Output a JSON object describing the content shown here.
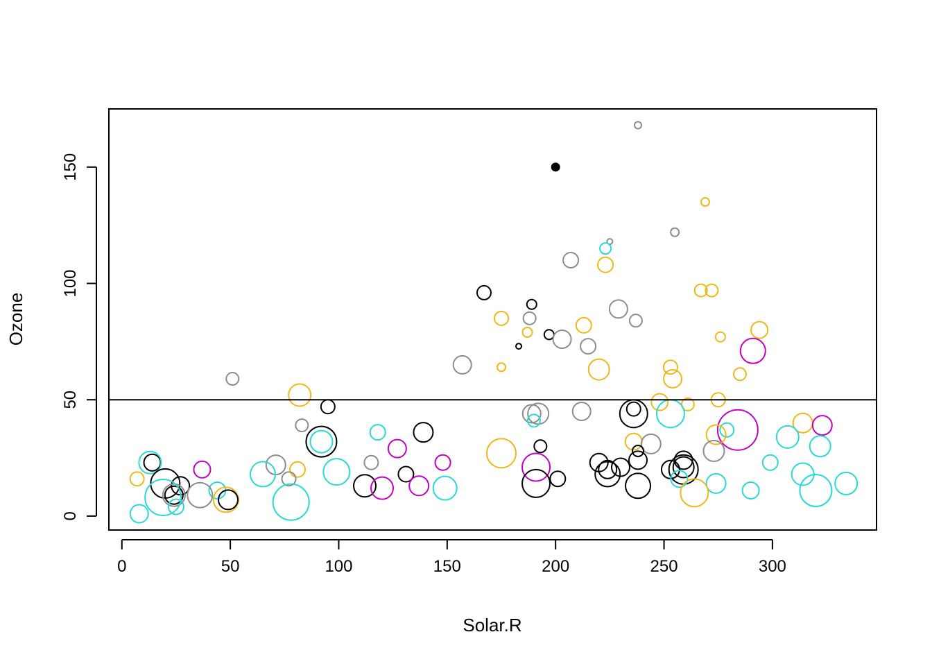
{
  "chart_data": {
    "type": "scatter",
    "title": "",
    "xlabel": "Solar.R",
    "ylabel": "Ozone",
    "xlim": [
      -6,
      348
    ],
    "ylim": [
      -6,
      175
    ],
    "xticks": [
      0,
      50,
      100,
      150,
      200,
      250,
      300
    ],
    "yticks": [
      0,
      50,
      100,
      150
    ],
    "xtick_labels": [
      "0",
      "50",
      "100",
      "150",
      "200",
      "250",
      "300"
    ],
    "ytick_labels": [
      "0",
      "50",
      "100",
      "150"
    ],
    "grid": false,
    "legend": "none",
    "hline": 50,
    "colors": {
      "black": "#000000",
      "gray": "#8c8c8c",
      "gold": "#efb819",
      "cyan": "#29d8d8",
      "magenta": "#c300c3"
    },
    "filled_points": [
      {
        "x": 200,
        "y": 150,
        "color": "black"
      }
    ],
    "points": [
      {
        "x": 238,
        "y": 168,
        "r": 5,
        "color": "gray"
      },
      {
        "x": 255,
        "y": 122,
        "r": 6,
        "color": "gray"
      },
      {
        "x": 269,
        "y": 135,
        "r": 6,
        "color": "gold"
      },
      {
        "x": 225,
        "y": 118,
        "r": 4,
        "color": "gray"
      },
      {
        "x": 223,
        "y": 115,
        "r": 8,
        "color": "cyan"
      },
      {
        "x": 207,
        "y": 110,
        "r": 11,
        "color": "gray"
      },
      {
        "x": 223,
        "y": 108,
        "r": 11,
        "color": "gold"
      },
      {
        "x": 167,
        "y": 96,
        "r": 10,
        "color": "black"
      },
      {
        "x": 267,
        "y": 97,
        "r": 9,
        "color": "gold"
      },
      {
        "x": 272,
        "y": 97,
        "r": 9,
        "color": "gold"
      },
      {
        "x": 189,
        "y": 91,
        "r": 7,
        "color": "black"
      },
      {
        "x": 229,
        "y": 89,
        "r": 13,
        "color": "gray"
      },
      {
        "x": 175,
        "y": 85,
        "r": 10,
        "color": "gold"
      },
      {
        "x": 188,
        "y": 85,
        "r": 9,
        "color": "gray"
      },
      {
        "x": 237,
        "y": 84,
        "r": 9,
        "color": "gray"
      },
      {
        "x": 213,
        "y": 82,
        "r": 11,
        "color": "gold"
      },
      {
        "x": 294,
        "y": 80,
        "r": 12,
        "color": "gold"
      },
      {
        "x": 187,
        "y": 79,
        "r": 7,
        "color": "gold"
      },
      {
        "x": 197,
        "y": 78,
        "r": 7,
        "color": "black"
      },
      {
        "x": 276,
        "y": 77,
        "r": 7,
        "color": "gold"
      },
      {
        "x": 203,
        "y": 76,
        "r": 13,
        "color": "gray"
      },
      {
        "x": 215,
        "y": 73,
        "r": 11,
        "color": "gray"
      },
      {
        "x": 183,
        "y": 73,
        "r": 4,
        "color": "black"
      },
      {
        "x": 291,
        "y": 71,
        "r": 18,
        "color": "magenta"
      },
      {
        "x": 157,
        "y": 65,
        "r": 13,
        "color": "gray"
      },
      {
        "x": 175,
        "y": 64,
        "r": 6,
        "color": "gold"
      },
      {
        "x": 253,
        "y": 64,
        "r": 10,
        "color": "gold"
      },
      {
        "x": 220,
        "y": 63,
        "r": 15,
        "color": "gold"
      },
      {
        "x": 285,
        "y": 61,
        "r": 9,
        "color": "gold"
      },
      {
        "x": 51,
        "y": 59,
        "r": 9,
        "color": "gray"
      },
      {
        "x": 254,
        "y": 59,
        "r": 13,
        "color": "gold"
      },
      {
        "x": 82,
        "y": 52,
        "r": 16,
        "color": "gold"
      },
      {
        "x": 275,
        "y": 50,
        "r": 10,
        "color": "gold"
      },
      {
        "x": 248,
        "y": 49,
        "r": 12,
        "color": "gold"
      },
      {
        "x": 95,
        "y": 47,
        "r": 10,
        "color": "black"
      },
      {
        "x": 261,
        "y": 48,
        "r": 9,
        "color": "gold"
      },
      {
        "x": 236,
        "y": 46,
        "r": 10,
        "color": "black"
      },
      {
        "x": 212,
        "y": 45,
        "r": 13,
        "color": "gray"
      },
      {
        "x": 253,
        "y": 44,
        "r": 20,
        "color": "cyan"
      },
      {
        "x": 189,
        "y": 44,
        "r": 13,
        "color": "gray"
      },
      {
        "x": 192,
        "y": 44,
        "r": 15,
        "color": "gray"
      },
      {
        "x": 236,
        "y": 44,
        "r": 20,
        "color": "black"
      },
      {
        "x": 190,
        "y": 41,
        "r": 9,
        "color": "cyan"
      },
      {
        "x": 83,
        "y": 39,
        "r": 9,
        "color": "gray"
      },
      {
        "x": 314,
        "y": 40,
        "r": 14,
        "color": "gold"
      },
      {
        "x": 323,
        "y": 39,
        "r": 14,
        "color": "magenta"
      },
      {
        "x": 279,
        "y": 37,
        "r": 10,
        "color": "cyan"
      },
      {
        "x": 284,
        "y": 37,
        "r": 29,
        "color": "magenta"
      },
      {
        "x": 118,
        "y": 36,
        "r": 11,
        "color": "cyan"
      },
      {
        "x": 139,
        "y": 36,
        "r": 14,
        "color": "black"
      },
      {
        "x": 274,
        "y": 35,
        "r": 14,
        "color": "gold"
      },
      {
        "x": 307,
        "y": 34,
        "r": 16,
        "color": "cyan"
      },
      {
        "x": 92,
        "y": 32,
        "r": 22,
        "color": "black"
      },
      {
        "x": 92,
        "y": 32,
        "r": 16,
        "color": "cyan"
      },
      {
        "x": 236,
        "y": 32,
        "r": 12,
        "color": "gold"
      },
      {
        "x": 244,
        "y": 31,
        "r": 14,
        "color": "gray"
      },
      {
        "x": 193,
        "y": 30,
        "r": 9,
        "color": "black"
      },
      {
        "x": 322,
        "y": 30,
        "r": 15,
        "color": "cyan"
      },
      {
        "x": 127,
        "y": 29,
        "r": 13,
        "color": "magenta"
      },
      {
        "x": 238,
        "y": 28,
        "r": 8,
        "color": "black"
      },
      {
        "x": 273,
        "y": 28,
        "r": 15,
        "color": "gray"
      },
      {
        "x": 175,
        "y": 27,
        "r": 21,
        "color": "gold"
      },
      {
        "x": 238,
        "y": 24,
        "r": 13,
        "color": "black"
      },
      {
        "x": 259,
        "y": 24,
        "r": 13,
        "color": "black"
      },
      {
        "x": 220,
        "y": 23,
        "r": 13,
        "color": "black"
      },
      {
        "x": 148,
        "y": 23,
        "r": 11,
        "color": "magenta"
      },
      {
        "x": 299,
        "y": 23,
        "r": 11,
        "color": "cyan"
      },
      {
        "x": 115,
        "y": 23,
        "r": 10,
        "color": "gray"
      },
      {
        "x": 14,
        "y": 23,
        "r": 12,
        "color": "black"
      },
      {
        "x": 13,
        "y": 23,
        "r": 16,
        "color": "cyan"
      },
      {
        "x": 71,
        "y": 22,
        "r": 14,
        "color": "gray"
      },
      {
        "x": 191,
        "y": 21,
        "r": 20,
        "color": "magenta"
      },
      {
        "x": 230,
        "y": 21,
        "r": 13,
        "color": "black"
      },
      {
        "x": 259,
        "y": 21,
        "r": 15,
        "color": "black"
      },
      {
        "x": 259,
        "y": 20,
        "r": 21,
        "color": "black"
      },
      {
        "x": 253,
        "y": 20,
        "r": 13,
        "color": "black"
      },
      {
        "x": 224,
        "y": 20,
        "r": 13,
        "color": "black"
      },
      {
        "x": 37,
        "y": 20,
        "r": 12,
        "color": "magenta"
      },
      {
        "x": 81,
        "y": 20,
        "r": 11,
        "color": "gold"
      },
      {
        "x": 99,
        "y": 19,
        "r": 19,
        "color": "cyan"
      },
      {
        "x": 65,
        "y": 18,
        "r": 18,
        "color": "cyan"
      },
      {
        "x": 131,
        "y": 18,
        "r": 11,
        "color": "black"
      },
      {
        "x": 224,
        "y": 18,
        "r": 18,
        "color": "black"
      },
      {
        "x": 314,
        "y": 18,
        "r": 16,
        "color": "cyan"
      },
      {
        "x": 257,
        "y": 16,
        "r": 12,
        "color": "cyan"
      },
      {
        "x": 201,
        "y": 16,
        "r": 11,
        "color": "black"
      },
      {
        "x": 7,
        "y": 16,
        "r": 10,
        "color": "gold"
      },
      {
        "x": 77,
        "y": 16,
        "r": 10,
        "color": "gray"
      },
      {
        "x": 20,
        "y": 14,
        "r": 21,
        "color": "black"
      },
      {
        "x": 191,
        "y": 14,
        "r": 20,
        "color": "black"
      },
      {
        "x": 274,
        "y": 14,
        "r": 14,
        "color": "cyan"
      },
      {
        "x": 334,
        "y": 14,
        "r": 16,
        "color": "cyan"
      },
      {
        "x": 27,
        "y": 13,
        "r": 13,
        "color": "black"
      },
      {
        "x": 112,
        "y": 13,
        "r": 16,
        "color": "black"
      },
      {
        "x": 238,
        "y": 13,
        "r": 18,
        "color": "black"
      },
      {
        "x": 137,
        "y": 13,
        "r": 14,
        "color": "magenta"
      },
      {
        "x": 120,
        "y": 12,
        "r": 16,
        "color": "magenta"
      },
      {
        "x": 149,
        "y": 12,
        "r": 17,
        "color": "cyan"
      },
      {
        "x": 44,
        "y": 11,
        "r": 12,
        "color": "cyan"
      },
      {
        "x": 290,
        "y": 11,
        "r": 12,
        "color": "cyan"
      },
      {
        "x": 320,
        "y": 11,
        "r": 23,
        "color": "cyan"
      },
      {
        "x": 264,
        "y": 10,
        "r": 20,
        "color": "gold"
      },
      {
        "x": 24,
        "y": 9,
        "r": 16,
        "color": "gray"
      },
      {
        "x": 36,
        "y": 9,
        "r": 18,
        "color": "gray"
      },
      {
        "x": 24,
        "y": 9,
        "r": 13,
        "color": "black"
      },
      {
        "x": 19,
        "y": 8,
        "r": 26,
        "color": "cyan"
      },
      {
        "x": 48,
        "y": 7,
        "r": 18,
        "color": "gold"
      },
      {
        "x": 49,
        "y": 7,
        "r": 14,
        "color": "black"
      },
      {
        "x": 78,
        "y": 6,
        "r": 26,
        "color": "cyan"
      },
      {
        "x": 25,
        "y": 4,
        "r": 11,
        "color": "cyan"
      },
      {
        "x": 8,
        "y": 1,
        "r": 13,
        "color": "cyan"
      }
    ]
  }
}
